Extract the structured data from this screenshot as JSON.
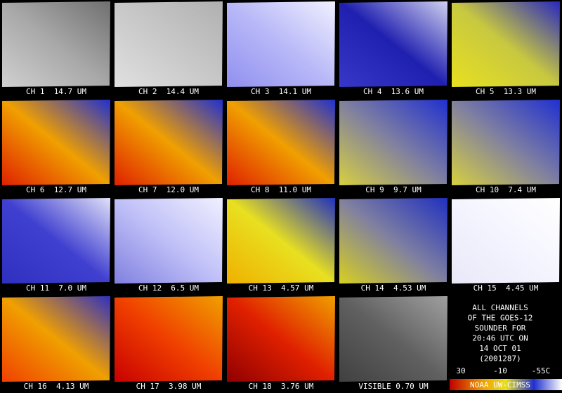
{
  "panels": [
    {
      "label": "CH 1  14.7 UM"
    },
    {
      "label": "CH 2  14.4 UM"
    },
    {
      "label": "CH 3  14.1 UM"
    },
    {
      "label": "CH 4  13.6 UM"
    },
    {
      "label": "CH 5  13.3 UM"
    },
    {
      "label": "CH 6  12.7 UM"
    },
    {
      "label": "CH 7  12.0 UM"
    },
    {
      "label": "CH 8  11.0 UM"
    },
    {
      "label": "CH 9  9.7 UM"
    },
    {
      "label": "CH 10  7.4 UM"
    },
    {
      "label": "CH 11  7.0 UM"
    },
    {
      "label": "CH 12  6.5 UM"
    },
    {
      "label": "CH 13  4.57 UM"
    },
    {
      "label": "CH 14  4.53 UM"
    },
    {
      "label": "CH 15  4.45 UM"
    },
    {
      "label": "CH 16  4.13 UM"
    },
    {
      "label": "CH 17  3.98 UM"
    },
    {
      "label": "CH 18  3.76 UM"
    },
    {
      "label": "VISIBLE 0.70 UM"
    }
  ],
  "info": {
    "lines": [
      "ALL CHANNELS",
      "OF THE GOES-12",
      "SOUNDER FOR",
      "20:46 UTC ON",
      "14 OCT 01",
      "(2001287)"
    ]
  },
  "colorbar": {
    "labels": [
      "30",
      "-10",
      "-55C"
    ]
  },
  "credit": "NOAA UW-CIMSS"
}
